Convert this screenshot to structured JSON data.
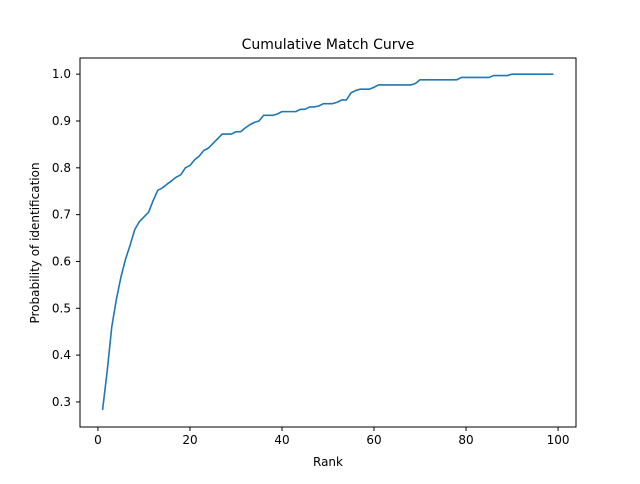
{
  "chart_data": {
    "type": "line",
    "title": "Cumulative Match Curve",
    "xlabel": "Rank",
    "ylabel": "Probability of identification",
    "xlim": [
      -3.9,
      103.9
    ],
    "ylim": [
      0.2465,
      1.0345
    ],
    "xticks": [
      0,
      20,
      40,
      60,
      80,
      100
    ],
    "yticks": [
      0.3,
      0.4,
      0.5,
      0.6,
      0.7,
      0.8,
      0.9,
      1.0
    ],
    "xtick_labels": [
      "0",
      "20",
      "40",
      "60",
      "80",
      "100"
    ],
    "ytick_labels": [
      "0.3",
      "0.4",
      "0.5",
      "0.6",
      "0.7",
      "0.8",
      "0.9",
      "1.0"
    ],
    "grid": false,
    "series": [
      {
        "color": "#1f77b4",
        "x": [
          1,
          2,
          3,
          4,
          5,
          6,
          7,
          8,
          9,
          10,
          11,
          12,
          13,
          14,
          15,
          16,
          17,
          18,
          19,
          20,
          21,
          22,
          23,
          24,
          25,
          26,
          27,
          28,
          29,
          30,
          31,
          32,
          33,
          34,
          35,
          36,
          37,
          38,
          39,
          40,
          41,
          42,
          43,
          44,
          45,
          46,
          47,
          48,
          49,
          50,
          51,
          52,
          53,
          54,
          55,
          56,
          57,
          58,
          59,
          60,
          61,
          62,
          63,
          64,
          65,
          66,
          67,
          68,
          69,
          70,
          71,
          72,
          73,
          74,
          75,
          76,
          77,
          78,
          79,
          80,
          81,
          82,
          83,
          84,
          85,
          86,
          87,
          88,
          89,
          90,
          91,
          92,
          93,
          94,
          95,
          96,
          97,
          98,
          99
        ],
        "y": [
          0.283,
          0.365,
          0.46,
          0.519,
          0.567,
          0.605,
          0.635,
          0.668,
          0.685,
          0.695,
          0.705,
          0.73,
          0.752,
          0.757,
          0.765,
          0.772,
          0.78,
          0.785,
          0.8,
          0.805,
          0.817,
          0.825,
          0.837,
          0.842,
          0.852,
          0.862,
          0.872,
          0.872,
          0.872,
          0.877,
          0.877,
          0.885,
          0.892,
          0.897,
          0.9,
          0.912,
          0.912,
          0.912,
          0.915,
          0.92,
          0.92,
          0.92,
          0.92,
          0.925,
          0.925,
          0.93,
          0.93,
          0.932,
          0.937,
          0.937,
          0.937,
          0.94,
          0.945,
          0.945,
          0.96,
          0.965,
          0.968,
          0.968,
          0.968,
          0.972,
          0.977,
          0.977,
          0.977,
          0.977,
          0.977,
          0.977,
          0.977,
          0.977,
          0.98,
          0.988,
          0.988,
          0.988,
          0.988,
          0.988,
          0.988,
          0.988,
          0.988,
          0.988,
          0.993,
          0.993,
          0.993,
          0.993,
          0.993,
          0.993,
          0.993,
          0.997,
          0.997,
          0.997,
          0.997,
          1.0,
          1.0,
          1.0,
          1.0,
          1.0,
          1.0,
          1.0,
          1.0,
          1.0,
          1.0
        ]
      }
    ]
  }
}
